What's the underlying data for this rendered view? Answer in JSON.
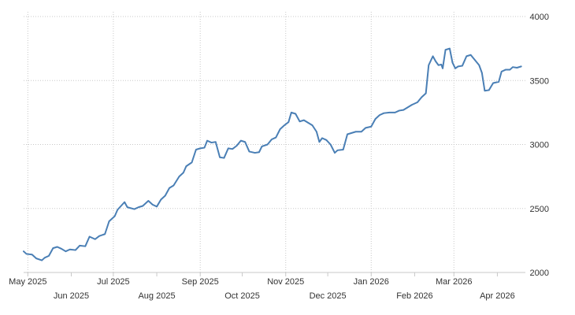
{
  "chart_data": {
    "type": "line",
    "title": "",
    "xlabel": "",
    "ylabel": "",
    "x_range": [
      "2025-04-28",
      "2026-04-21"
    ],
    "ylim": [
      2000,
      4000
    ],
    "y_axis_position": "right",
    "y_ticks": [
      2000,
      2500,
      3000,
      3500,
      4000
    ],
    "grid": true,
    "legend": "none",
    "line_color": "#4a7fb5",
    "x_ticks": [
      {
        "date": "2025-05-01",
        "label": "May 2025"
      },
      {
        "date": "2025-06-01",
        "label": "Jun 2025"
      },
      {
        "date": "2025-07-01",
        "label": "Jul 2025"
      },
      {
        "date": "2025-08-01",
        "label": "Aug 2025"
      },
      {
        "date": "2025-09-01",
        "label": "Sep 2025"
      },
      {
        "date": "2025-10-01",
        "label": "Oct 2025"
      },
      {
        "date": "2025-11-01",
        "label": "Nov 2025"
      },
      {
        "date": "2025-12-01",
        "label": "Dec 2025"
      },
      {
        "date": "2026-01-01",
        "label": "Jan 2026"
      },
      {
        "date": "2026-02-01",
        "label": "Feb 2026"
      },
      {
        "date": "2026-03-01",
        "label": "Mar 2026"
      },
      {
        "date": "2026-04-01",
        "label": "Apr 2026"
      }
    ],
    "series": [
      {
        "points": [
          [
            "2025-04-28",
            2165
          ],
          [
            "2025-04-30",
            2145
          ],
          [
            "2025-05-04",
            2140
          ],
          [
            "2025-05-07",
            2110
          ],
          [
            "2025-05-11",
            2095
          ],
          [
            "2025-05-13",
            2115
          ],
          [
            "2025-05-16",
            2130
          ],
          [
            "2025-05-19",
            2190
          ],
          [
            "2025-05-22",
            2200
          ],
          [
            "2025-05-25",
            2185
          ],
          [
            "2025-05-28",
            2165
          ],
          [
            "2025-05-31",
            2180
          ],
          [
            "2025-06-04",
            2175
          ],
          [
            "2025-06-07",
            2210
          ],
          [
            "2025-06-11",
            2205
          ],
          [
            "2025-06-14",
            2280
          ],
          [
            "2025-06-18",
            2260
          ],
          [
            "2025-06-21",
            2285
          ],
          [
            "2025-06-25",
            2300
          ],
          [
            "2025-06-28",
            2400
          ],
          [
            "2025-07-02",
            2440
          ],
          [
            "2025-07-04",
            2490
          ],
          [
            "2025-07-09",
            2550
          ],
          [
            "2025-07-11",
            2510
          ],
          [
            "2025-07-16",
            2495
          ],
          [
            "2025-07-19",
            2510
          ],
          [
            "2025-07-22",
            2520
          ],
          [
            "2025-07-26",
            2560
          ],
          [
            "2025-07-29",
            2530
          ],
          [
            "2025-08-01",
            2515
          ],
          [
            "2025-08-04",
            2570
          ],
          [
            "2025-08-07",
            2600
          ],
          [
            "2025-08-10",
            2660
          ],
          [
            "2025-08-13",
            2680
          ],
          [
            "2025-08-17",
            2750
          ],
          [
            "2025-08-20",
            2780
          ],
          [
            "2025-08-22",
            2830
          ],
          [
            "2025-08-26",
            2860
          ],
          [
            "2025-08-29",
            2960
          ],
          [
            "2025-09-01",
            2970
          ],
          [
            "2025-09-04",
            2975
          ],
          [
            "2025-09-06",
            3030
          ],
          [
            "2025-09-09",
            3015
          ],
          [
            "2025-09-12",
            3020
          ],
          [
            "2025-09-15",
            2900
          ],
          [
            "2025-09-18",
            2895
          ],
          [
            "2025-09-21",
            2970
          ],
          [
            "2025-09-24",
            2965
          ],
          [
            "2025-09-27",
            2990
          ],
          [
            "2025-09-30",
            3030
          ],
          [
            "2025-10-03",
            3020
          ],
          [
            "2025-10-06",
            2945
          ],
          [
            "2025-10-10",
            2935
          ],
          [
            "2025-10-13",
            2940
          ],
          [
            "2025-10-15",
            2985
          ],
          [
            "2025-10-19",
            3000
          ],
          [
            "2025-10-22",
            3040
          ],
          [
            "2025-10-25",
            3055
          ],
          [
            "2025-10-28",
            3120
          ],
          [
            "2025-10-31",
            3150
          ],
          [
            "2025-11-03",
            3175
          ],
          [
            "2025-11-05",
            3250
          ],
          [
            "2025-11-08",
            3240
          ],
          [
            "2025-11-11",
            3180
          ],
          [
            "2025-11-14",
            3190
          ],
          [
            "2025-11-17",
            3170
          ],
          [
            "2025-11-20",
            3150
          ],
          [
            "2025-11-23",
            3100
          ],
          [
            "2025-11-25",
            3020
          ],
          [
            "2025-11-27",
            3050
          ],
          [
            "2025-11-30",
            3035
          ],
          [
            "2025-12-03",
            3000
          ],
          [
            "2025-12-06",
            2935
          ],
          [
            "2025-12-08",
            2955
          ],
          [
            "2025-12-12",
            2960
          ],
          [
            "2025-12-15",
            3080
          ],
          [
            "2025-12-18",
            3090
          ],
          [
            "2025-12-21",
            3100
          ],
          [
            "2025-12-25",
            3100
          ],
          [
            "2025-12-28",
            3130
          ],
          [
            "2026-01-01",
            3140
          ],
          [
            "2026-01-04",
            3200
          ],
          [
            "2026-01-07",
            3230
          ],
          [
            "2026-01-10",
            3245
          ],
          [
            "2026-01-14",
            3250
          ],
          [
            "2026-01-18",
            3250
          ],
          [
            "2026-01-21",
            3265
          ],
          [
            "2026-01-24",
            3270
          ],
          [
            "2026-01-27",
            3290
          ],
          [
            "2026-01-30",
            3310
          ],
          [
            "2026-02-03",
            3330
          ],
          [
            "2026-02-06",
            3370
          ],
          [
            "2026-02-09",
            3400
          ],
          [
            "2026-02-11",
            3620
          ],
          [
            "2026-02-14",
            3690
          ],
          [
            "2026-02-16",
            3650
          ],
          [
            "2026-02-18",
            3620
          ],
          [
            "2026-02-20",
            3625
          ],
          [
            "2026-02-21",
            3595
          ],
          [
            "2026-02-23",
            3740
          ],
          [
            "2026-02-26",
            3750
          ],
          [
            "2026-02-28",
            3640
          ],
          [
            "2026-03-02",
            3595
          ],
          [
            "2026-03-04",
            3610
          ],
          [
            "2026-03-07",
            3615
          ],
          [
            "2026-03-10",
            3690
          ],
          [
            "2026-03-13",
            3700
          ],
          [
            "2026-03-16",
            3660
          ],
          [
            "2026-03-19",
            3620
          ],
          [
            "2026-03-21",
            3560
          ],
          [
            "2026-03-23",
            3420
          ],
          [
            "2026-03-26",
            3425
          ],
          [
            "2026-03-29",
            3480
          ],
          [
            "2026-04-02",
            3490
          ],
          [
            "2026-04-04",
            3570
          ],
          [
            "2026-04-07",
            3585
          ],
          [
            "2026-04-10",
            3585
          ],
          [
            "2026-04-12",
            3605
          ],
          [
            "2026-04-15",
            3600
          ],
          [
            "2026-04-18",
            3610
          ]
        ]
      }
    ]
  }
}
